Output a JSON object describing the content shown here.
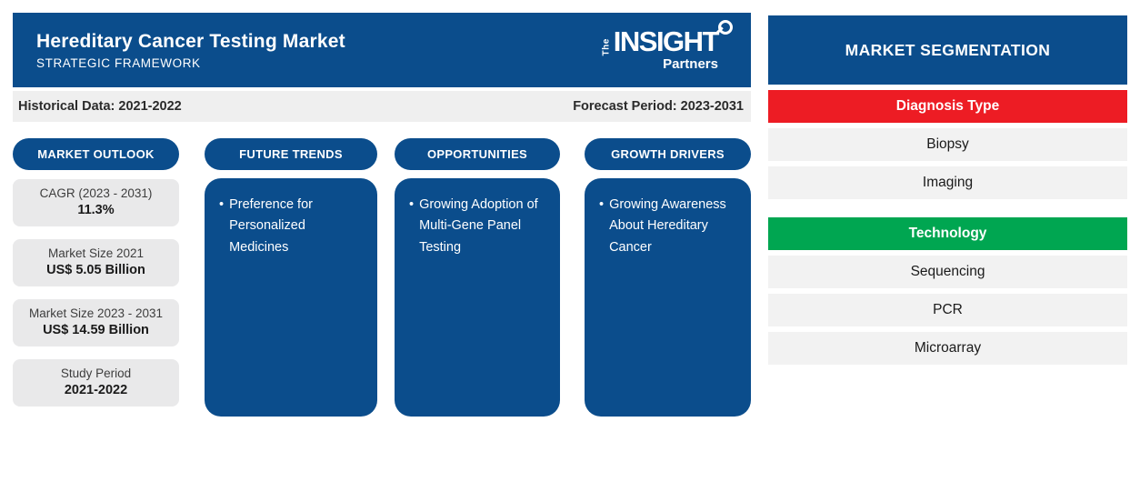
{
  "colors": {
    "primary_blue": "#0b4d8c",
    "accent_red": "#ed1c24",
    "accent_green": "#00a651",
    "info_bar_gray": "#efefef",
    "stat_card_gray": "#e9e9ea",
    "segment_item_gray": "#f2f2f2"
  },
  "header": {
    "title": "Hereditary Cancer Testing Market",
    "subtitle": "STRATEGIC FRAMEWORK"
  },
  "logo": {
    "the": "The",
    "insight": "INSIGHT",
    "partners": "Partners"
  },
  "info_bar": {
    "historical": "Historical Data: 2021-2022",
    "forecast": "Forecast Period: 2023-2031"
  },
  "tabs": [
    {
      "label": "MARKET OUTLOOK"
    },
    {
      "label": "FUTURE TRENDS"
    },
    {
      "label": "OPPORTUNITIES"
    },
    {
      "label": "GROWTH DRIVERS"
    }
  ],
  "market_outlook": {
    "stats": [
      {
        "label": "CAGR (2023 - 2031)",
        "value": "11.3%"
      },
      {
        "label": "Market Size 2021",
        "value": "US$ 5.05 Billion"
      },
      {
        "label": "Market Size 2023 - 2031",
        "value": "US$ 14.59 Billion"
      },
      {
        "label": "Study Period",
        "value": "2021-2022"
      }
    ]
  },
  "future_trends": {
    "bullet": "Preference for Personalized Medicines"
  },
  "opportunities": {
    "bullet": "Growing Adoption of Multi-Gene Panel Testing"
  },
  "growth_drivers": {
    "bullet": "Growing Awareness About Hereditary Cancer"
  },
  "segmentation": {
    "title": "MARKET SEGMENTATION",
    "groups": [
      {
        "label": "Diagnosis Type",
        "items": [
          "Biopsy",
          "Imaging"
        ]
      },
      {
        "label": "Technology",
        "items": [
          "Sequencing",
          "PCR",
          "Microarray"
        ]
      }
    ]
  }
}
